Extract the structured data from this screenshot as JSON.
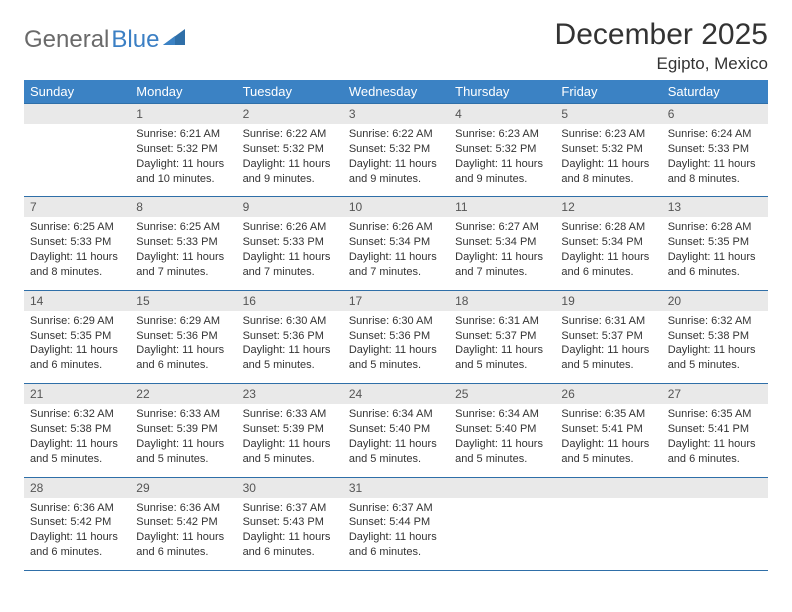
{
  "brand": {
    "part1": "General",
    "part2": "Blue"
  },
  "title": "December 2025",
  "location": "Egipto, Mexico",
  "colors": {
    "header_bg": "#3b82c4",
    "header_text": "#ffffff",
    "daynum_bg": "#e9e9e9",
    "daynum_text": "#555555",
    "rule": "#2f6fa8",
    "body_text": "#333333",
    "logo_gray": "#6a6a6a",
    "logo_blue": "#3b7fc4",
    "page_bg": "#ffffff"
  },
  "typography": {
    "title_fontsize": 30,
    "location_fontsize": 17,
    "dayhead_fontsize": 13,
    "daynum_fontsize": 12,
    "body_fontsize": 11
  },
  "day_headers": [
    "Sunday",
    "Monday",
    "Tuesday",
    "Wednesday",
    "Thursday",
    "Friday",
    "Saturday"
  ],
  "weeks": [
    [
      {
        "num": "",
        "sunrise": "",
        "sunset": "",
        "daylight": ""
      },
      {
        "num": "1",
        "sunrise": "Sunrise: 6:21 AM",
        "sunset": "Sunset: 5:32 PM",
        "daylight": "Daylight: 11 hours and 10 minutes."
      },
      {
        "num": "2",
        "sunrise": "Sunrise: 6:22 AM",
        "sunset": "Sunset: 5:32 PM",
        "daylight": "Daylight: 11 hours and 9 minutes."
      },
      {
        "num": "3",
        "sunrise": "Sunrise: 6:22 AM",
        "sunset": "Sunset: 5:32 PM",
        "daylight": "Daylight: 11 hours and 9 minutes."
      },
      {
        "num": "4",
        "sunrise": "Sunrise: 6:23 AM",
        "sunset": "Sunset: 5:32 PM",
        "daylight": "Daylight: 11 hours and 9 minutes."
      },
      {
        "num": "5",
        "sunrise": "Sunrise: 6:23 AM",
        "sunset": "Sunset: 5:32 PM",
        "daylight": "Daylight: 11 hours and 8 minutes."
      },
      {
        "num": "6",
        "sunrise": "Sunrise: 6:24 AM",
        "sunset": "Sunset: 5:33 PM",
        "daylight": "Daylight: 11 hours and 8 minutes."
      }
    ],
    [
      {
        "num": "7",
        "sunrise": "Sunrise: 6:25 AM",
        "sunset": "Sunset: 5:33 PM",
        "daylight": "Daylight: 11 hours and 8 minutes."
      },
      {
        "num": "8",
        "sunrise": "Sunrise: 6:25 AM",
        "sunset": "Sunset: 5:33 PM",
        "daylight": "Daylight: 11 hours and 7 minutes."
      },
      {
        "num": "9",
        "sunrise": "Sunrise: 6:26 AM",
        "sunset": "Sunset: 5:33 PM",
        "daylight": "Daylight: 11 hours and 7 minutes."
      },
      {
        "num": "10",
        "sunrise": "Sunrise: 6:26 AM",
        "sunset": "Sunset: 5:34 PM",
        "daylight": "Daylight: 11 hours and 7 minutes."
      },
      {
        "num": "11",
        "sunrise": "Sunrise: 6:27 AM",
        "sunset": "Sunset: 5:34 PM",
        "daylight": "Daylight: 11 hours and 7 minutes."
      },
      {
        "num": "12",
        "sunrise": "Sunrise: 6:28 AM",
        "sunset": "Sunset: 5:34 PM",
        "daylight": "Daylight: 11 hours and 6 minutes."
      },
      {
        "num": "13",
        "sunrise": "Sunrise: 6:28 AM",
        "sunset": "Sunset: 5:35 PM",
        "daylight": "Daylight: 11 hours and 6 minutes."
      }
    ],
    [
      {
        "num": "14",
        "sunrise": "Sunrise: 6:29 AM",
        "sunset": "Sunset: 5:35 PM",
        "daylight": "Daylight: 11 hours and 6 minutes."
      },
      {
        "num": "15",
        "sunrise": "Sunrise: 6:29 AM",
        "sunset": "Sunset: 5:36 PM",
        "daylight": "Daylight: 11 hours and 6 minutes."
      },
      {
        "num": "16",
        "sunrise": "Sunrise: 6:30 AM",
        "sunset": "Sunset: 5:36 PM",
        "daylight": "Daylight: 11 hours and 5 minutes."
      },
      {
        "num": "17",
        "sunrise": "Sunrise: 6:30 AM",
        "sunset": "Sunset: 5:36 PM",
        "daylight": "Daylight: 11 hours and 5 minutes."
      },
      {
        "num": "18",
        "sunrise": "Sunrise: 6:31 AM",
        "sunset": "Sunset: 5:37 PM",
        "daylight": "Daylight: 11 hours and 5 minutes."
      },
      {
        "num": "19",
        "sunrise": "Sunrise: 6:31 AM",
        "sunset": "Sunset: 5:37 PM",
        "daylight": "Daylight: 11 hours and 5 minutes."
      },
      {
        "num": "20",
        "sunrise": "Sunrise: 6:32 AM",
        "sunset": "Sunset: 5:38 PM",
        "daylight": "Daylight: 11 hours and 5 minutes."
      }
    ],
    [
      {
        "num": "21",
        "sunrise": "Sunrise: 6:32 AM",
        "sunset": "Sunset: 5:38 PM",
        "daylight": "Daylight: 11 hours and 5 minutes."
      },
      {
        "num": "22",
        "sunrise": "Sunrise: 6:33 AM",
        "sunset": "Sunset: 5:39 PM",
        "daylight": "Daylight: 11 hours and 5 minutes."
      },
      {
        "num": "23",
        "sunrise": "Sunrise: 6:33 AM",
        "sunset": "Sunset: 5:39 PM",
        "daylight": "Daylight: 11 hours and 5 minutes."
      },
      {
        "num": "24",
        "sunrise": "Sunrise: 6:34 AM",
        "sunset": "Sunset: 5:40 PM",
        "daylight": "Daylight: 11 hours and 5 minutes."
      },
      {
        "num": "25",
        "sunrise": "Sunrise: 6:34 AM",
        "sunset": "Sunset: 5:40 PM",
        "daylight": "Daylight: 11 hours and 5 minutes."
      },
      {
        "num": "26",
        "sunrise": "Sunrise: 6:35 AM",
        "sunset": "Sunset: 5:41 PM",
        "daylight": "Daylight: 11 hours and 5 minutes."
      },
      {
        "num": "27",
        "sunrise": "Sunrise: 6:35 AM",
        "sunset": "Sunset: 5:41 PM",
        "daylight": "Daylight: 11 hours and 6 minutes."
      }
    ],
    [
      {
        "num": "28",
        "sunrise": "Sunrise: 6:36 AM",
        "sunset": "Sunset: 5:42 PM",
        "daylight": "Daylight: 11 hours and 6 minutes."
      },
      {
        "num": "29",
        "sunrise": "Sunrise: 6:36 AM",
        "sunset": "Sunset: 5:42 PM",
        "daylight": "Daylight: 11 hours and 6 minutes."
      },
      {
        "num": "30",
        "sunrise": "Sunrise: 6:37 AM",
        "sunset": "Sunset: 5:43 PM",
        "daylight": "Daylight: 11 hours and 6 minutes."
      },
      {
        "num": "31",
        "sunrise": "Sunrise: 6:37 AM",
        "sunset": "Sunset: 5:44 PM",
        "daylight": "Daylight: 11 hours and 6 minutes."
      },
      {
        "num": "",
        "sunrise": "",
        "sunset": "",
        "daylight": ""
      },
      {
        "num": "",
        "sunrise": "",
        "sunset": "",
        "daylight": ""
      },
      {
        "num": "",
        "sunrise": "",
        "sunset": "",
        "daylight": ""
      }
    ]
  ]
}
